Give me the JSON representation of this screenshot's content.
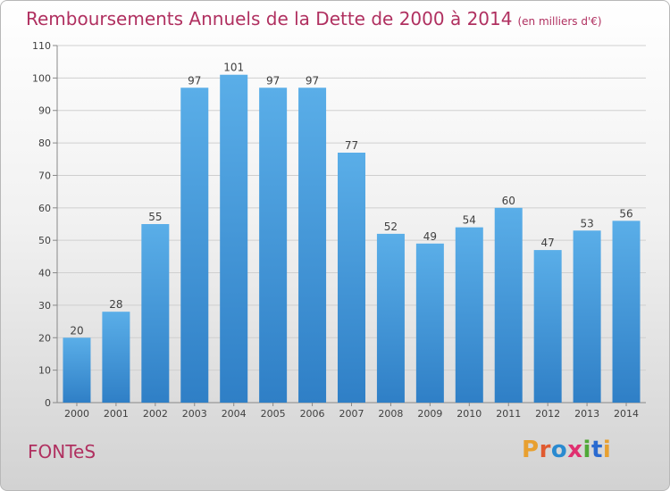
{
  "title": "Remboursements Annuels de la Dette de 2000 à 2014",
  "subtitle": "(en milliers d'€)",
  "town": "FONTeS",
  "logo": {
    "text": "Proxiti",
    "colors": [
      "#e8a030",
      "#e05a30",
      "#2a8ad0",
      "#e03070",
      "#50a838",
      "#2a6ad0"
    ]
  },
  "chart_data": {
    "type": "bar",
    "categories": [
      "2000",
      "2001",
      "2002",
      "2003",
      "2004",
      "2005",
      "2006",
      "2007",
      "2008",
      "2009",
      "2010",
      "2011",
      "2012",
      "2013",
      "2014"
    ],
    "values": [
      20,
      28,
      55,
      97,
      101,
      97,
      97,
      77,
      52,
      49,
      54,
      60,
      47,
      53,
      56
    ],
    "data_labels": [
      "20",
      "28",
      "55",
      "97",
      "101",
      "97",
      "97",
      "77",
      "52",
      "49",
      "54",
      "60",
      "47",
      "53",
      "56"
    ],
    "yticks": [
      0,
      10,
      20,
      30,
      40,
      50,
      60,
      70,
      80,
      90,
      100,
      110
    ],
    "ylim": [
      0,
      110
    ],
    "grid": true,
    "bar_color": "#3d94dc",
    "label_color": "#404040",
    "grid_color": "#cfcfcf"
  }
}
